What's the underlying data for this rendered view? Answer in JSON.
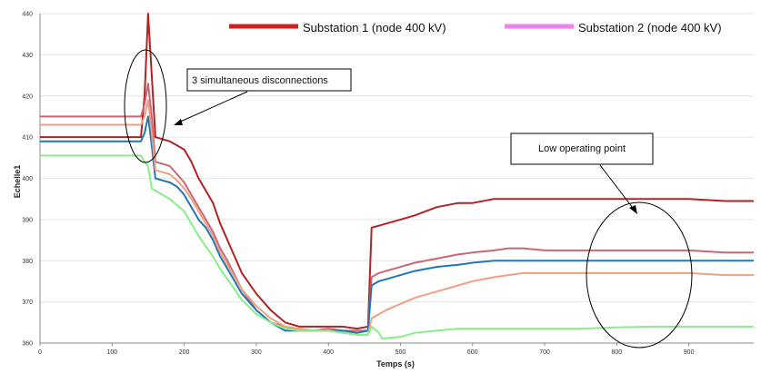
{
  "chart_data": {
    "type": "line",
    "title": "",
    "xlabel": "Temps (s)",
    "ylabel": "Echelle1",
    "xlim": [
      0,
      990
    ],
    "ylim": [
      360,
      440
    ],
    "x_ticks": [
      0,
      100,
      200,
      300,
      400,
      500,
      600,
      700,
      800,
      900
    ],
    "y_ticks": [
      360,
      370,
      380,
      390,
      400,
      410,
      420,
      430,
      440
    ],
    "grid": "horizontal",
    "legend": {
      "placement": "top",
      "entries": [
        {
          "label": "Substation 1 (node 400 kV)",
          "color": "#cc2222"
        },
        {
          "label": "Substation 2 (node 400 kV)",
          "color": "#ee82ee"
        }
      ]
    },
    "series": [
      {
        "color": "#b22222",
        "x": [
          0,
          140,
          145,
          150,
          155,
          160,
          170,
          180,
          190,
          200,
          210,
          220,
          230,
          240,
          250,
          260,
          280,
          300,
          320,
          340,
          360,
          380,
          400,
          420,
          440,
          455,
          460,
          470,
          480,
          500,
          520,
          550,
          580,
          600,
          630,
          650,
          670,
          700,
          750,
          800,
          850,
          900,
          950,
          990
        ],
        "y": [
          410,
          410,
          420,
          440,
          425,
          410,
          409.5,
          409,
          408,
          407,
          404,
          400,
          397,
          394,
          389,
          385,
          377,
          372,
          368,
          365,
          364,
          364,
          364,
          364,
          363.5,
          364,
          388,
          388.5,
          389,
          390,
          391,
          393,
          394,
          394,
          395,
          395,
          395,
          395,
          395,
          395,
          395,
          395,
          394.5,
          394.5
        ]
      },
      {
        "color": "#cc6677",
        "x": [
          0,
          140,
          145,
          150,
          155,
          160,
          170,
          180,
          190,
          200,
          210,
          220,
          230,
          240,
          250,
          260,
          280,
          300,
          320,
          340,
          360,
          380,
          400,
          420,
          440,
          455,
          460,
          470,
          480,
          500,
          520,
          550,
          580,
          600,
          630,
          650,
          670,
          700,
          750,
          800,
          850,
          900,
          950,
          990
        ],
        "y": [
          415,
          415,
          418,
          423,
          415,
          404,
          403.5,
          403,
          401,
          399,
          396,
          393,
          390,
          387,
          383,
          380,
          373,
          368,
          365,
          364,
          363,
          363,
          363.5,
          363,
          363,
          363,
          376,
          377,
          377.5,
          378.5,
          379.5,
          380.5,
          381.5,
          382,
          382.5,
          383,
          383,
          382.5,
          382.5,
          382.5,
          382.5,
          382.5,
          382,
          382
        ]
      },
      {
        "color": "#1f77b4",
        "x": [
          0,
          140,
          145,
          150,
          155,
          160,
          170,
          180,
          190,
          200,
          210,
          220,
          230,
          240,
          250,
          260,
          280,
          300,
          320,
          340,
          360,
          380,
          400,
          420,
          440,
          455,
          460,
          470,
          480,
          500,
          520,
          550,
          580,
          600,
          630,
          650,
          670,
          700,
          750,
          800,
          850,
          900,
          950,
          990
        ],
        "y": [
          409,
          409,
          411,
          415,
          408,
          400,
          399.5,
          399,
          398,
          396,
          393,
          390,
          388,
          385,
          381,
          378,
          372,
          368,
          365,
          363,
          363,
          363,
          363,
          363,
          362.5,
          363,
          374,
          375,
          375.5,
          376.5,
          377.5,
          378.5,
          379,
          379.5,
          380,
          380,
          380,
          380,
          380,
          380,
          380,
          380,
          380,
          380
        ]
      },
      {
        "color": "#f0a080",
        "x": [
          0,
          140,
          145,
          150,
          155,
          160,
          170,
          180,
          190,
          200,
          210,
          220,
          230,
          240,
          250,
          260,
          280,
          300,
          320,
          340,
          360,
          380,
          400,
          420,
          440,
          455,
          460,
          470,
          480,
          500,
          520,
          550,
          580,
          600,
          630,
          650,
          670,
          700,
          750,
          800,
          850,
          900,
          950,
          990
        ],
        "y": [
          413,
          413,
          415,
          419,
          411,
          402,
          401.5,
          401,
          399.5,
          397.5,
          395,
          392,
          389,
          386,
          382,
          379,
          373,
          369,
          366,
          364,
          363.5,
          363,
          363,
          362.5,
          362,
          362,
          366,
          367,
          368,
          369.5,
          371,
          372.5,
          374,
          375,
          376,
          376.5,
          377,
          377,
          377,
          377,
          377,
          377,
          376.5,
          376.5
        ]
      },
      {
        "color": "#88ee88",
        "x": [
          0,
          140,
          145,
          150,
          155,
          160,
          170,
          180,
          190,
          200,
          210,
          220,
          230,
          240,
          250,
          260,
          280,
          300,
          320,
          340,
          360,
          380,
          400,
          420,
          440,
          455,
          460,
          470,
          475,
          480,
          500,
          520,
          550,
          580,
          600,
          650,
          700,
          750,
          800,
          850,
          900,
          950,
          990
        ],
        "y": [
          405.5,
          405.5,
          404,
          403,
          397.5,
          397,
          396,
          395,
          393.5,
          392,
          389,
          386,
          383.5,
          381,
          378,
          375.5,
          370.5,
          367,
          365,
          363.5,
          363,
          363,
          363,
          362.5,
          362,
          362,
          364,
          362.5,
          361,
          361.2,
          361.5,
          362.5,
          363,
          363.5,
          363.5,
          363.5,
          363.5,
          363.5,
          363.8,
          364,
          364,
          364,
          364
        ]
      }
    ],
    "annotations": [
      {
        "text": "3 simultaneous disconnections"
      },
      {
        "text": "Low operating point"
      }
    ]
  }
}
